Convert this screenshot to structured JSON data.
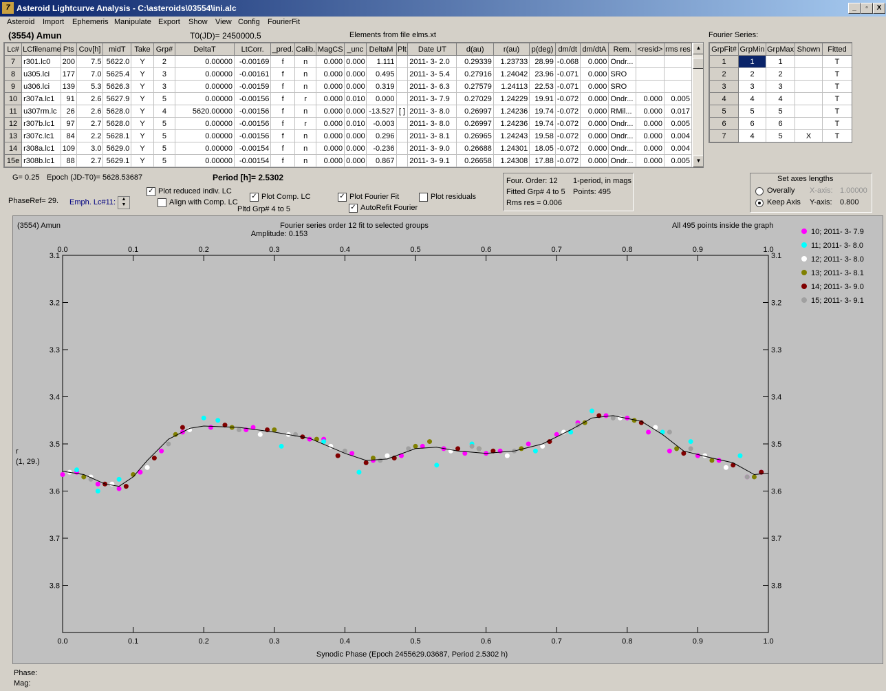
{
  "window": {
    "title": "Asteroid Lightcurve Analysis - C:\\asteroids\\03554\\ini.alc",
    "min": "_",
    "max": "▫",
    "close": "X"
  },
  "menu": [
    "Asteroid",
    "Import",
    "Ephemeris",
    "Manipulate",
    "Export",
    "Show",
    "View",
    "Config",
    "FourierFit"
  ],
  "header": {
    "asteroid": "(3554) Amun",
    "t0": "T0(JD)= 2450000.5",
    "elements": "Elements from file elms.xt",
    "fourier_label": "Fourier Series:"
  },
  "lc_table": {
    "columns": [
      "Lc#",
      "LCfilename",
      "Pts",
      "Cov[h]",
      "midT",
      "Take",
      "Grp#",
      "DeltaT",
      "LtCorr.",
      "_pred.",
      "Calib.",
      "MagCS",
      "_unc",
      "DeltaM",
      "Plt",
      "Date UT",
      "d(au)",
      "r(au)",
      "p(deg)",
      "dm/dt",
      "dm/dtA",
      "Rem.",
      "<resid>",
      "rms res"
    ],
    "rows": [
      [
        "7",
        "r301.lc0",
        "200",
        "7.5",
        "5622.0",
        "Y",
        "2",
        "0.00000",
        "-0.00169",
        "f",
        "n",
        "0.000",
        "0.000",
        "1.111",
        "",
        "2011- 3- 2.0",
        "0.29339",
        "1.23733",
        "28.99",
        "-0.068",
        "0.000",
        "Ondr...",
        "",
        ""
      ],
      [
        "8",
        "u305.lci",
        "177",
        "7.0",
        "5625.4",
        "Y",
        "3",
        "0.00000",
        "-0.00161",
        "f",
        "n",
        "0.000",
        "0.000",
        "0.495",
        "",
        "2011- 3- 5.4",
        "0.27916",
        "1.24042",
        "23.96",
        "-0.071",
        "0.000",
        "SRO",
        "",
        ""
      ],
      [
        "9",
        "u306.lci",
        "139",
        "5.3",
        "5626.3",
        "Y",
        "3",
        "0.00000",
        "-0.00159",
        "f",
        "n",
        "0.000",
        "0.000",
        "0.319",
        "",
        "2011- 3- 6.3",
        "0.27579",
        "1.24113",
        "22.53",
        "-0.071",
        "0.000",
        "SRO",
        "",
        ""
      ],
      [
        "10",
        "r307a.lc1",
        "91",
        "2.6",
        "5627.9",
        "Y",
        "5",
        "0.00000",
        "-0.00156",
        "f",
        "r",
        "0.000",
        "0.010",
        "0.000",
        "",
        "2011- 3- 7.9",
        "0.27029",
        "1.24229",
        "19.91",
        "-0.072",
        "0.000",
        "Ondr...",
        "0.000",
        "0.005"
      ],
      [
        "11",
        "u307rm.lc",
        "26",
        "2.6",
        "5628.0",
        "Y",
        "4",
        "5620.00000",
        "-0.00156",
        "f",
        "n",
        "0.000",
        "0.000",
        "-13.527",
        "[ ]",
        "2011- 3- 8.0",
        "0.26997",
        "1.24236",
        "19.74",
        "-0.072",
        "0.000",
        "RMil...",
        "0.000",
        "0.017"
      ],
      [
        "12",
        "r307b.lc1",
        "97",
        "2.7",
        "5628.0",
        "Y",
        "5",
        "0.00000",
        "-0.00156",
        "f",
        "r",
        "0.000",
        "0.010",
        "-0.003",
        "",
        "2011- 3- 8.0",
        "0.26997",
        "1.24236",
        "19.74",
        "-0.072",
        "0.000",
        "Ondr...",
        "0.000",
        "0.005"
      ],
      [
        "13",
        "r307c.lc1",
        "84",
        "2.2",
        "5628.1",
        "Y",
        "5",
        "0.00000",
        "-0.00156",
        "f",
        "n",
        "0.000",
        "0.000",
        "0.296",
        "",
        "2011- 3- 8.1",
        "0.26965",
        "1.24243",
        "19.58",
        "-0.072",
        "0.000",
        "Ondr...",
        "0.000",
        "0.004"
      ],
      [
        "14",
        "r308a.lc1",
        "109",
        "3.0",
        "5629.0",
        "Y",
        "5",
        "0.00000",
        "-0.00154",
        "f",
        "n",
        "0.000",
        "0.000",
        "-0.236",
        "",
        "2011- 3- 9.0",
        "0.26688",
        "1.24301",
        "18.05",
        "-0.072",
        "0.000",
        "Ondr...",
        "0.000",
        "0.004"
      ],
      [
        "15e",
        "r308b.lc1",
        "88",
        "2.7",
        "5629.1",
        "Y",
        "5",
        "0.00000",
        "-0.00154",
        "f",
        "n",
        "0.000",
        "0.000",
        "0.867",
        "",
        "2011- 3- 9.1",
        "0.26658",
        "1.24308",
        "17.88",
        "-0.072",
        "0.000",
        "Ondr...",
        "0.000",
        "0.005"
      ]
    ]
  },
  "fourier_table": {
    "columns": [
      "GrpFit#",
      "GrpMin",
      "GrpMax",
      "Shown",
      "Fitted"
    ],
    "rows": [
      [
        "1",
        "1",
        "1",
        "",
        "T"
      ],
      [
        "2",
        "2",
        "2",
        "",
        "T"
      ],
      [
        "3",
        "3",
        "3",
        "",
        "T"
      ],
      [
        "4",
        "4",
        "4",
        "",
        "T"
      ],
      [
        "5",
        "5",
        "5",
        "",
        "T"
      ],
      [
        "6",
        "6",
        "6",
        "",
        "T"
      ],
      [
        "7",
        "4",
        "5",
        "X",
        "T"
      ]
    ]
  },
  "controls": {
    "g": "G= 0.25",
    "epoch": "Epoch (JD-T0)= 5628.53687",
    "period": "Period [h]= 2.5302",
    "phaseref": "PhaseRef= 29.",
    "emph": "Emph. Lc#11:",
    "plot_reduced": "Plot reduced indiv. LC",
    "align": "Align with Comp. LC",
    "plot_comp": "Plot Comp. LC",
    "pltd_grp": "Pltd Grp#  4   to   5",
    "plot_fourier": "Plot Fourier Fit",
    "autorefit": "AutoRefit Fourier",
    "plot_residuals": "Plot residuals",
    "checks": {
      "plot_reduced": "✓",
      "align": "",
      "plot_comp": "✓",
      "plot_fourier": "✓",
      "autorefit": "✓",
      "plot_residuals": ""
    }
  },
  "fit_info": {
    "order": "Four. Order: 12",
    "period_mode": "1-period, in mags",
    "fitted": "Fitted Grp# 4 to 5",
    "points": "Points: 495",
    "rms": "Rms res      = 0.006"
  },
  "axes_box": {
    "title": "Set axes lengths",
    "overally": "Overally",
    "keep": "Keep Axis",
    "x_label": "X-axis:",
    "x_value": "1.00000",
    "y_label": "Y-axis:",
    "y_value": "0.800"
  },
  "plot": {
    "name": "(3554) Amun",
    "fit_title": "Fourier series order 12 fit to selected groups",
    "amplitude": "Amplitude: 0.153",
    "inside": "All 495 points inside the graph",
    "ylabel1": "r",
    "ylabel2": "(1, 29.)",
    "xlabel": "Synodic Phase (Epoch 2455629.03687, Period 2.5302 h)"
  },
  "status": {
    "phase": "Phase:",
    "mag": "Mag:"
  },
  "chart_data": {
    "type": "scatter",
    "xlabel": "Synodic Phase (Epoch 2455629.03687, Period 2.5302 h)",
    "ylabel": "r",
    "xlim": [
      0,
      1
    ],
    "ylim": [
      3.1,
      3.9
    ],
    "y_inverted": true,
    "x_ticks": [
      "0.0",
      "0.1",
      "0.2",
      "0.3",
      "0.4",
      "0.5",
      "0.6",
      "0.7",
      "0.8",
      "0.9",
      "1.0"
    ],
    "y_ticks": [
      "3.1",
      "3.2",
      "3.3",
      "3.4",
      "3.5",
      "3.6",
      "3.7",
      "3.8"
    ],
    "legend_position": "top-right",
    "fit_curve": [
      [
        0.0,
        3.558
      ],
      [
        0.03,
        3.565
      ],
      [
        0.06,
        3.585
      ],
      [
        0.08,
        3.59
      ],
      [
        0.1,
        3.57
      ],
      [
        0.12,
        3.535
      ],
      [
        0.15,
        3.49
      ],
      [
        0.18,
        3.467
      ],
      [
        0.2,
        3.462
      ],
      [
        0.25,
        3.465
      ],
      [
        0.3,
        3.475
      ],
      [
        0.35,
        3.488
      ],
      [
        0.4,
        3.52
      ],
      [
        0.43,
        3.535
      ],
      [
        0.46,
        3.532
      ],
      [
        0.5,
        3.51
      ],
      [
        0.53,
        3.507
      ],
      [
        0.56,
        3.515
      ],
      [
        0.6,
        3.52
      ],
      [
        0.64,
        3.515
      ],
      [
        0.68,
        3.5
      ],
      [
        0.72,
        3.47
      ],
      [
        0.75,
        3.445
      ],
      [
        0.78,
        3.44
      ],
      [
        0.82,
        3.452
      ],
      [
        0.85,
        3.48
      ],
      [
        0.88,
        3.515
      ],
      [
        0.92,
        3.53
      ],
      [
        0.95,
        3.54
      ],
      [
        0.98,
        3.565
      ],
      [
        1.0,
        3.562
      ]
    ],
    "series": [
      {
        "name": "10; 2011- 3- 7.9",
        "color": "#ff00ff",
        "x": [
          0.0,
          0.02,
          0.05,
          0.08,
          0.11,
          0.14,
          0.17,
          0.21,
          0.26,
          0.27,
          0.35,
          0.37,
          0.41,
          0.44,
          0.48,
          0.51,
          0.54,
          0.57,
          0.6,
          0.62,
          0.66,
          0.7,
          0.73,
          0.77,
          0.8,
          0.83,
          0.86,
          0.9,
          0.93,
          0.97,
          0.99
        ],
        "y": [
          3.565,
          3.56,
          3.585,
          3.595,
          3.56,
          3.515,
          3.475,
          3.465,
          3.47,
          3.465,
          3.49,
          3.49,
          3.52,
          3.535,
          3.525,
          3.505,
          3.51,
          3.52,
          3.52,
          3.515,
          3.5,
          3.48,
          3.455,
          3.44,
          3.445,
          3.475,
          3.515,
          3.525,
          3.535,
          3.57,
          3.56
        ]
      },
      {
        "name": "11; 2011- 3- 8.0",
        "color": "#00ffff",
        "x": [
          0.02,
          0.05,
          0.08,
          0.2,
          0.22,
          0.31,
          0.37,
          0.42,
          0.53,
          0.58,
          0.67,
          0.72,
          0.75,
          0.85,
          0.89,
          0.96
        ],
        "y": [
          3.555,
          3.6,
          3.575,
          3.445,
          3.45,
          3.505,
          3.495,
          3.56,
          3.545,
          3.5,
          3.515,
          3.475,
          3.43,
          3.475,
          3.495,
          3.525
        ]
      },
      {
        "name": "12; 2011- 3- 8.0",
        "color": "#ffffff",
        "x": [
          0.01,
          0.04,
          0.07,
          0.12,
          0.18,
          0.28,
          0.32,
          0.38,
          0.46,
          0.55,
          0.63,
          0.68,
          0.71,
          0.79,
          0.84,
          0.91,
          0.94
        ],
        "y": [
          3.56,
          3.57,
          3.585,
          3.55,
          3.47,
          3.48,
          3.48,
          3.505,
          3.525,
          3.515,
          3.525,
          3.505,
          3.475,
          3.445,
          3.465,
          3.525,
          3.55
        ]
      },
      {
        "name": "13; 2011- 3- 8.1",
        "color": "#808000",
        "x": [
          0.03,
          0.1,
          0.16,
          0.24,
          0.3,
          0.36,
          0.44,
          0.5,
          0.52,
          0.59,
          0.65,
          0.74,
          0.81,
          0.87,
          0.92,
          0.98
        ],
        "y": [
          3.57,
          3.565,
          3.48,
          3.465,
          3.47,
          3.49,
          3.53,
          3.505,
          3.495,
          3.51,
          3.51,
          3.455,
          3.45,
          3.51,
          3.535,
          3.57
        ]
      },
      {
        "name": "14; 2011- 3- 9.0",
        "color": "#800000",
        "x": [
          0.06,
          0.09,
          0.13,
          0.17,
          0.23,
          0.29,
          0.34,
          0.39,
          0.43,
          0.47,
          0.56,
          0.61,
          0.69,
          0.76,
          0.82,
          0.88,
          0.95,
          0.99
        ],
        "y": [
          3.585,
          3.59,
          3.53,
          3.465,
          3.46,
          3.47,
          3.485,
          3.525,
          3.54,
          3.53,
          3.51,
          3.515,
          3.495,
          3.44,
          3.455,
          3.52,
          3.545,
          3.56
        ]
      },
      {
        "name": "15; 2011- 3- 9.1",
        "color": "#a0a0a0",
        "x": [
          0.04,
          0.15,
          0.25,
          0.33,
          0.4,
          0.45,
          0.49,
          0.58,
          0.59,
          0.64,
          0.73,
          0.78,
          0.86,
          0.89,
          0.97
        ],
        "y": [
          3.575,
          3.5,
          3.47,
          3.48,
          3.515,
          3.535,
          3.51,
          3.505,
          3.51,
          3.515,
          3.46,
          3.445,
          3.475,
          3.51,
          3.57
        ]
      }
    ]
  }
}
